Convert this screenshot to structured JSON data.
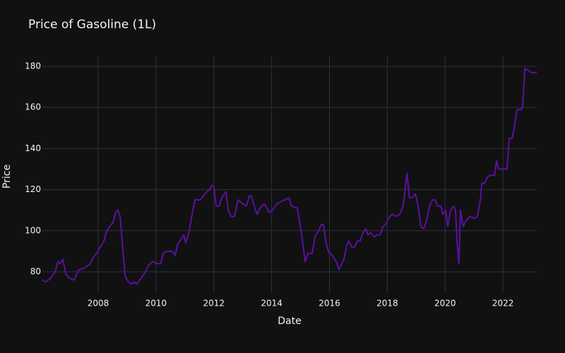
{
  "chart_data": {
    "type": "line",
    "title": "Price of Gasoline (1L)",
    "x_label": "Date",
    "y_label": "Price",
    "x": [
      2006.07,
      2006.19,
      2006.36,
      2006.51,
      2006.61,
      2006.68,
      2006.78,
      2006.88,
      2007.0,
      2007.17,
      2007.29,
      2007.34,
      2007.54,
      2007.73,
      2007.83,
      2007.95,
      2008.07,
      2008.2,
      2008.27,
      2008.39,
      2008.51,
      2008.61,
      2008.68,
      2008.76,
      2008.83,
      2008.93,
      2009.05,
      2009.15,
      2009.25,
      2009.34,
      2009.44,
      2009.54,
      2009.64,
      2009.73,
      2009.88,
      2010.03,
      2010.17,
      2010.25,
      2010.37,
      2010.57,
      2010.66,
      2010.76,
      2010.83,
      2010.96,
      2011.03,
      2011.15,
      2011.25,
      2011.35,
      2011.54,
      2011.69,
      2011.84,
      2011.93,
      2012.01,
      2012.08,
      2012.18,
      2012.28,
      2012.42,
      2012.5,
      2012.59,
      2012.72,
      2012.84,
      2013.01,
      2013.13,
      2013.23,
      2013.3,
      2013.42,
      2013.5,
      2013.59,
      2013.74,
      2013.84,
      2013.91,
      2014.03,
      2014.18,
      2014.3,
      2014.45,
      2014.6,
      2014.69,
      2014.89,
      2015.04,
      2015.16,
      2015.26,
      2015.4,
      2015.5,
      2015.62,
      2015.72,
      2015.79,
      2015.87,
      2015.96,
      2016.04,
      2016.14,
      2016.23,
      2016.33,
      2016.43,
      2016.5,
      2016.6,
      2016.67,
      2016.77,
      2016.87,
      2016.97,
      2017.06,
      2017.16,
      2017.26,
      2017.33,
      2017.43,
      2017.55,
      2017.65,
      2017.75,
      2017.85,
      2017.94,
      2018.04,
      2018.16,
      2018.31,
      2018.43,
      2018.55,
      2018.68,
      2018.77,
      2018.87,
      2018.97,
      2019.07,
      2019.16,
      2019.26,
      2019.36,
      2019.46,
      2019.56,
      2019.65,
      2019.75,
      2019.85,
      2019.92,
      2020.02,
      2020.09,
      2020.19,
      2020.29,
      2020.36,
      2020.41,
      2020.48,
      2020.53,
      2020.63,
      2020.73,
      2020.87,
      2021.0,
      2021.12,
      2021.22,
      2021.27,
      2021.36,
      2021.46,
      2021.56,
      2021.71,
      2021.78,
      2021.85,
      2022.0,
      2022.14,
      2022.22,
      2022.32,
      2022.39,
      2022.49,
      2022.63,
      2022.68,
      2022.76,
      2022.88,
      2022.98,
      2023.17
    ],
    "series": [
      {
        "color": "#5b10a0",
        "values": [
          76,
          75,
          77,
          80,
          85,
          84,
          86,
          79,
          77,
          76,
          80,
          81,
          82,
          84,
          87,
          89,
          92,
          95,
          99,
          102,
          104,
          109,
          110,
          107,
          95,
          78,
          75,
          74,
          75,
          74,
          76,
          78,
          80,
          83,
          85,
          84,
          84,
          89,
          90,
          90,
          88,
          94,
          95,
          98,
          94,
          100,
          108,
          115,
          115,
          118,
          120,
          122,
          121,
          112,
          112,
          116,
          119,
          110,
          107,
          107,
          115,
          113,
          112,
          117,
          117,
          111,
          108,
          111,
          113,
          111,
          109,
          110,
          113,
          114,
          115,
          116,
          112,
          111,
          98,
          85,
          89,
          89,
          97,
          100,
          103,
          103,
          95,
          90,
          89,
          87,
          85,
          81,
          84,
          86,
          93,
          95,
          92,
          92,
          95,
          95,
          99,
          101,
          98,
          99,
          97,
          98,
          98,
          102,
          103,
          106,
          108,
          107,
          108,
          112,
          128,
          116,
          116,
          118,
          112,
          102,
          101,
          105,
          112,
          115,
          115,
          112,
          112,
          108,
          110,
          102,
          110,
          112,
          110,
          95,
          84,
          110,
          102,
          105,
          107,
          106,
          107,
          115,
          123,
          123,
          126,
          127,
          127,
          134,
          130,
          130,
          130,
          145,
          145,
          150,
          159,
          159,
          160,
          179,
          178,
          177,
          177
        ]
      }
    ],
    "xlim": [
      2006.07,
      2023.17
    ],
    "xticks": [
      2008,
      2010,
      2012,
      2014,
      2016,
      2018,
      2020,
      2022
    ],
    "ylim": [
      69.7,
      184.8
    ],
    "yticks": [
      80,
      100,
      120,
      140,
      160,
      180
    ],
    "grid": true
  }
}
